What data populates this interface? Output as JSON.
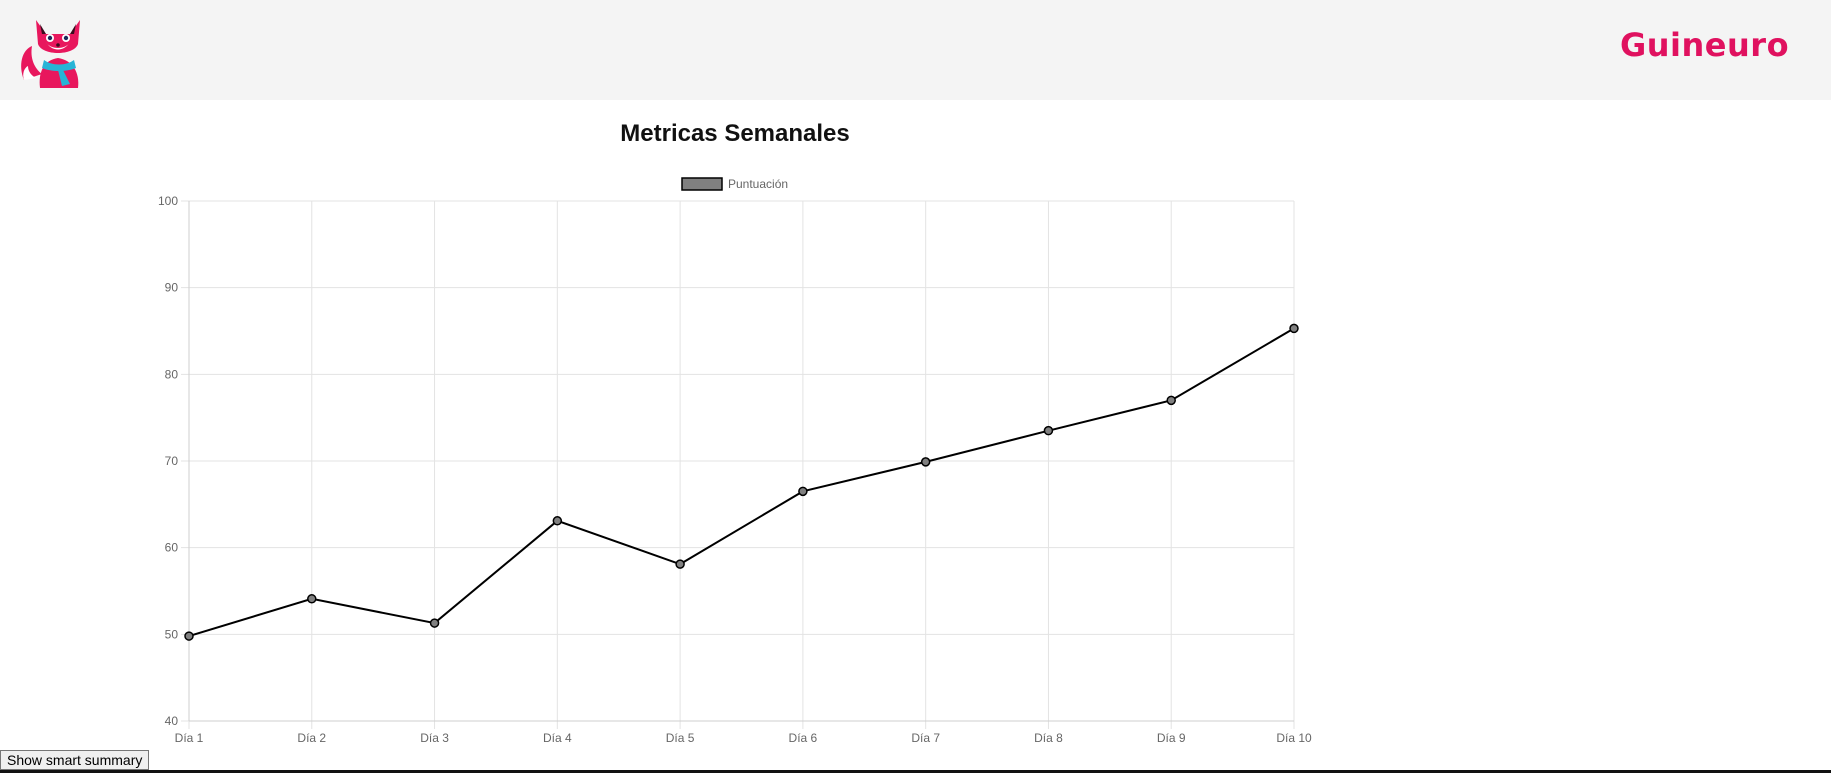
{
  "header": {
    "brand": "Guineuro",
    "brand_color": "#e0115f",
    "logo_icon": "fox-mascot-icon"
  },
  "chart_data": {
    "type": "line",
    "title": "Metricas Semanales",
    "categories": [
      "Día 1",
      "Día 2",
      "Día 3",
      "Día 4",
      "Día 5",
      "Día 6",
      "Día 7",
      "Día 8",
      "Día 9",
      "Día 10"
    ],
    "series": [
      {
        "name": "Puntuación",
        "values": [
          49.8,
          54.1,
          51.3,
          63.1,
          58.1,
          66.5,
          69.9,
          73.5,
          77.0,
          85.3
        ],
        "line_color": "#000000",
        "fill_color": "#808080"
      }
    ],
    "ylim": [
      40,
      100
    ],
    "yticks": [
      40,
      50,
      60,
      70,
      80,
      90,
      100
    ],
    "grid": true,
    "legend": "top-center"
  },
  "footer": {
    "summary_button_label": "Show smart summary"
  }
}
